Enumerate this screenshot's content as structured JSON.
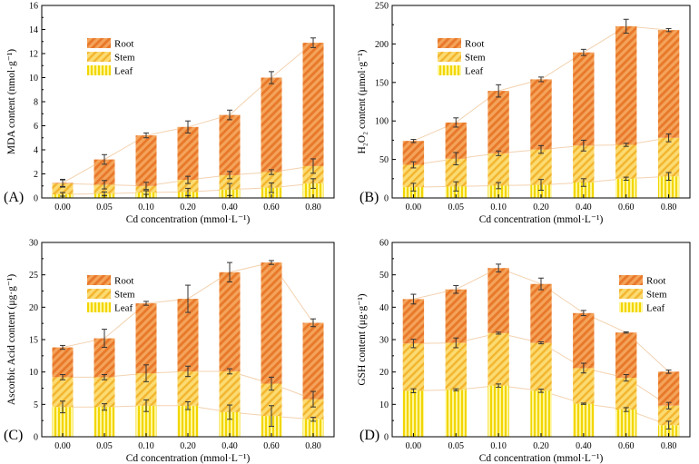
{
  "chart_data": [
    {
      "type": "bar",
      "stacked": true,
      "panel_label": "(A)",
      "title": "",
      "xlabel": "Cd concentration (mmol·L⁻¹)",
      "ylabel": "MDA content (nmol·g⁻¹)",
      "ylim": [
        0,
        16
      ],
      "yticks": [
        0,
        2,
        4,
        6,
        8,
        10,
        12,
        14,
        16
      ],
      "categories": [
        "0.00",
        "0.05",
        "0.10",
        "0.20",
        "0.40",
        "0.60",
        "0.80"
      ],
      "legend_position": "top-left",
      "series": [
        {
          "name": "Leaf",
          "values": [
            0.3,
            0.35,
            0.45,
            0.5,
            0.7,
            0.85,
            1.2
          ],
          "errors": [
            0.15,
            0.15,
            0.15,
            0.3,
            0.5,
            0.4,
            0.4
          ]
        },
        {
          "name": "Stem",
          "values": [
            0.9,
            0.75,
            0.55,
            1.0,
            1.2,
            1.3,
            1.45
          ],
          "errors": [
            0.3,
            0.35,
            0.3,
            0.3,
            0.3,
            0.2,
            0.6
          ]
        },
        {
          "name": "Root",
          "values": [
            0.05,
            2.1,
            4.2,
            4.4,
            5.0,
            7.85,
            10.25
          ],
          "errors": [
            0.3,
            0.4,
            0.2,
            0.5,
            0.4,
            0.5,
            0.4
          ]
        }
      ]
    },
    {
      "type": "bar",
      "stacked": true,
      "panel_label": "(B)",
      "title": "",
      "xlabel": "Cd concentration (mmol·L⁻¹)",
      "ylabel": "H₂O₂ content (μmol·g⁻¹)",
      "ylim": [
        0,
        250
      ],
      "yticks": [
        0,
        50,
        100,
        150,
        200,
        250
      ],
      "categories": [
        "0.00",
        "0.05",
        "0.10",
        "0.20",
        "0.40",
        "0.60",
        "0.80"
      ],
      "legend_position": "top-left",
      "series": [
        {
          "name": "Leaf",
          "values": [
            14,
            15,
            16,
            17,
            20,
            25,
            28
          ],
          "errors": [
            5,
            6,
            4,
            7,
            5,
            2,
            5
          ]
        },
        {
          "name": "Stem",
          "values": [
            29,
            36,
            42,
            46,
            48,
            44,
            50
          ],
          "errors": [
            4,
            8,
            3,
            5,
            7,
            2,
            5
          ]
        },
        {
          "name": "Root",
          "values": [
            31,
            47,
            81,
            91,
            121,
            154,
            140
          ],
          "errors": [
            2,
            6,
            8,
            3,
            4,
            9,
            2
          ]
        }
      ]
    },
    {
      "type": "bar",
      "stacked": true,
      "panel_label": "(C)",
      "title": "",
      "xlabel": "Cd concentration (mmol·L⁻¹)",
      "ylabel": "Ascorbic Acid content (μg·g⁻¹)",
      "ylim": [
        0,
        30
      ],
      "yticks": [
        0,
        5,
        10,
        15,
        20,
        25,
        30
      ],
      "categories": [
        "0.00",
        "0.05",
        "0.10",
        "0.20",
        "0.40",
        "0.60",
        "0.80"
      ],
      "legend_position": "top-left",
      "series": [
        {
          "name": "Leaf",
          "values": [
            4.6,
            4.6,
            4.8,
            4.8,
            3.8,
            3.2,
            2.7
          ],
          "errors": [
            0.9,
            0.5,
            0.9,
            0.6,
            1.1,
            1.6,
            0.3
          ]
        },
        {
          "name": "Stem",
          "values": [
            4.6,
            4.6,
            5.0,
            5.3,
            6.3,
            5.0,
            3.1
          ],
          "errors": [
            0.4,
            0.4,
            1.3,
            0.8,
            0.4,
            1.0,
            1.2
          ]
        },
        {
          "name": "Root",
          "values": [
            4.6,
            6.0,
            10.8,
            11.2,
            15.3,
            18.7,
            11.8
          ],
          "errors": [
            0.3,
            1.4,
            0.3,
            2.1,
            1.5,
            0.3,
            0.6
          ]
        }
      ]
    },
    {
      "type": "bar",
      "stacked": true,
      "panel_label": "(D)",
      "title": "",
      "xlabel": "Cd concentration (mmol·L⁻¹)",
      "ylabel": "GSH content (μg·g⁻¹)",
      "ylim": [
        0,
        60
      ],
      "yticks": [
        0,
        10,
        20,
        30,
        40,
        50,
        60
      ],
      "categories": [
        "0.00",
        "0.05",
        "0.10",
        "0.20",
        "0.40",
        "0.60",
        "0.80"
      ],
      "legend_position": "top-right",
      "series": [
        {
          "name": "Leaf",
          "values": [
            14.2,
            14.5,
            15.8,
            14.2,
            10.2,
            8.4,
            3.6
          ],
          "errors": [
            0.6,
            0.3,
            0.5,
            0.5,
            0.2,
            0.6,
            1.2
          ]
        },
        {
          "name": "Stem",
          "values": [
            14.6,
            14.5,
            16.2,
            14.8,
            11.0,
            9.8,
            6.0
          ],
          "errors": [
            1.3,
            1.5,
            0.3,
            0.3,
            1.5,
            1.0,
            1.0
          ]
        },
        {
          "name": "Root",
          "values": [
            13.7,
            16.5,
            20.1,
            18.2,
            17.0,
            14.0,
            10.5
          ],
          "errors": [
            1.5,
            1.2,
            1.2,
            1.8,
            0.8,
            0.2,
            0.5
          ]
        }
      ]
    }
  ]
}
